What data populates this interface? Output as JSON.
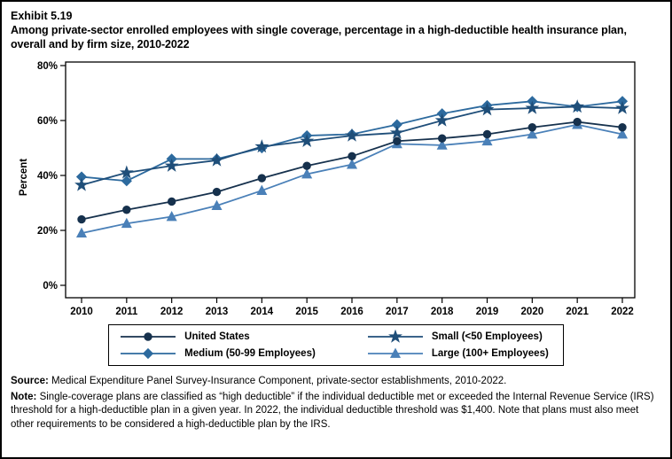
{
  "exhibit_label": "Exhibit 5.19",
  "title": "Among private-sector enrolled employees with single coverage, percentage in a high-deductible health insurance plan, overall and by firm size, 2010-2022",
  "chart_data": {
    "type": "line",
    "x": [
      "2010",
      "2011",
      "2012",
      "2013",
      "2014",
      "2015",
      "2016",
      "2017",
      "2018",
      "2019",
      "2020",
      "2021",
      "2022"
    ],
    "ylabel": "Percent",
    "ylim": [
      0,
      80
    ],
    "yticks": [
      {
        "value": 0,
        "label": "0%"
      },
      {
        "value": 20,
        "label": "20%"
      },
      {
        "value": 40,
        "label": "40%"
      },
      {
        "value": 60,
        "label": "60%"
      },
      {
        "value": 80,
        "label": "80%"
      }
    ],
    "grid": false,
    "legend_position": "bottom",
    "series": [
      {
        "name": "United States",
        "marker": "circle",
        "color": "#16314d",
        "values": [
          24,
          27.5,
          30.5,
          34,
          39,
          43.5,
          47,
          52.5,
          53.5,
          55,
          57.5,
          59.5,
          57.5
        ]
      },
      {
        "name": "Small (<50 Employees)",
        "marker": "star",
        "color": "#1f4e79",
        "values": [
          36.5,
          41,
          43.5,
          45.5,
          50.5,
          52.5,
          54.5,
          55.5,
          60,
          64,
          64.5,
          65,
          64.5
        ]
      },
      {
        "name": "Medium (50-99 Employees)",
        "marker": "diamond",
        "color": "#2d6a9e",
        "values": [
          39.5,
          38,
          46,
          46,
          50,
          54.5,
          55,
          58.5,
          62.5,
          65.5,
          67,
          65,
          67
        ]
      },
      {
        "name": "Large (100+ Employees)",
        "marker": "triangle",
        "color": "#4a80b8",
        "values": [
          19,
          22.5,
          25,
          29,
          34.5,
          40.5,
          44,
          51.5,
          51,
          52.5,
          55,
          58.5,
          55
        ]
      }
    ]
  },
  "footer": {
    "source_label": "Source:",
    "source_text": " Medical Expenditure Panel Survey-Insurance Component, private-sector establishments, 2010-2022.",
    "note_label": "Note:",
    "note_text": " Single-coverage plans are classified as “high deductible” if the individual deductible met or exceeded the Internal Revenue Service (IRS) threshold for a high-deductible plan in a given year. In 2022, the individual deductible threshold was $1,400. Note that plans must also meet other requirements to be considered a high-deductible plan by the IRS."
  }
}
